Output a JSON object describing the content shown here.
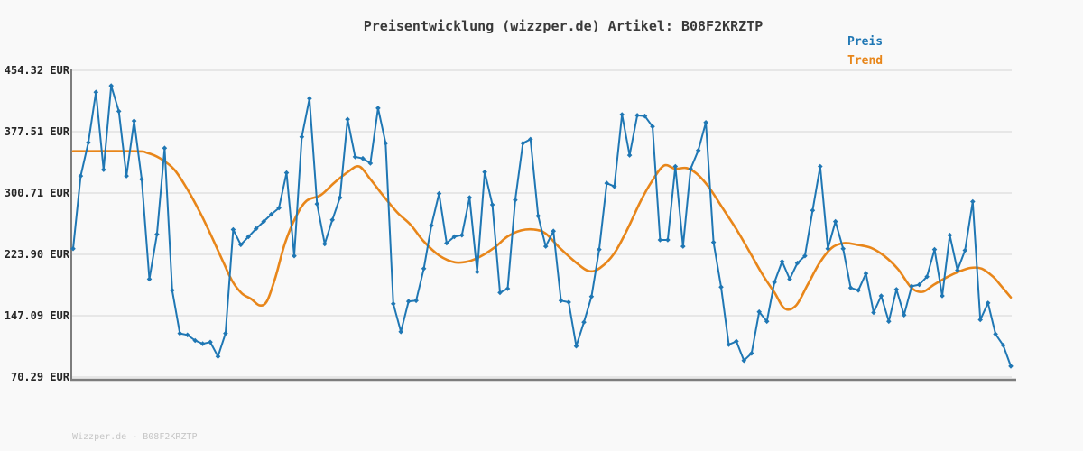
{
  "title": "Preisentwicklung (wizzper.de) Artikel: B08F2KRZTP",
  "footer": "Wizzper.de - B08F2KRZTP",
  "legend": [
    {
      "label": "Preis",
      "color": "#1f77b4"
    },
    {
      "label": "Trend",
      "color": "#e8861a"
    }
  ],
  "axis": {
    "currency": "EUR",
    "y_ticks": [
      454.32,
      377.51,
      300.71,
      223.9,
      147.09,
      70.29
    ],
    "y_tick_labels": [
      "454.32 EUR",
      "377.51 EUR",
      "300.71 EUR",
      "223.90 EUR",
      "147.09 EUR",
      "70.29 EUR"
    ],
    "x_tick_labels_visible": false
  },
  "theme": {
    "background": "#f9f9f9",
    "gridline": "#e4e4e4",
    "spine": "#7d7d7d",
    "title_color": "#3a3a3a",
    "tick_color": "#262626",
    "watermark_color": "#c6c6c6"
  },
  "chart_data": {
    "type": "line",
    "title": "Preisentwicklung (wizzper.de) Artikel: B08F2KRZTP",
    "xlabel": "",
    "ylabel": "EUR",
    "ylim": [
      70.29,
      454.32
    ],
    "grid": "horizontal",
    "legend_position": "top-right",
    "series": [
      {
        "name": "Preis",
        "color": "#1f77b4",
        "marker": "diamond",
        "values": [
          231,
          322,
          364,
          427,
          330,
          435,
          403,
          322,
          391,
          318,
          193,
          249,
          357,
          179,
          125,
          123,
          116,
          112,
          114,
          96,
          125,
          255,
          236,
          246,
          256,
          265,
          274,
          282,
          326,
          222,
          371,
          419,
          287,
          237,
          267,
          295,
          393,
          346,
          344,
          338,
          407,
          363,
          162,
          127,
          165,
          166,
          206,
          260,
          300,
          238,
          246,
          248,
          295,
          202,
          327,
          286,
          176,
          181,
          292,
          363,
          368,
          272,
          234,
          253,
          166,
          164,
          109,
          139,
          171,
          230,
          313,
          309,
          399,
          348,
          398,
          397,
          384,
          242,
          242,
          334,
          234,
          331,
          354,
          389,
          239,
          183,
          111,
          115,
          91,
          100,
          152,
          140,
          189,
          215,
          193,
          213,
          222,
          279,
          334,
          231,
          265,
          231,
          182,
          179,
          200,
          151,
          172,
          140,
          180,
          148,
          184,
          186,
          196,
          230,
          172,
          248,
          204,
          229,
          290,
          142,
          163,
          124,
          110,
          84
        ]
      },
      {
        "name": "Trend",
        "color": "#e8861a",
        "marker": "none",
        "anchors_x_fraction_value": [
          [
            0.0,
            353
          ],
          [
            0.066,
            353
          ],
          [
            0.079,
            351
          ],
          [
            0.093,
            344
          ],
          [
            0.108,
            330
          ],
          [
            0.122,
            305
          ],
          [
            0.136,
            275
          ],
          [
            0.149,
            243
          ],
          [
            0.161,
            212
          ],
          [
            0.17,
            190
          ],
          [
            0.18,
            175
          ],
          [
            0.19,
            168
          ],
          [
            0.199,
            160
          ],
          [
            0.207,
            166
          ],
          [
            0.216,
            196
          ],
          [
            0.226,
            238
          ],
          [
            0.238,
            272
          ],
          [
            0.249,
            291
          ],
          [
            0.264,
            298
          ],
          [
            0.278,
            313
          ],
          [
            0.293,
            327
          ],
          [
            0.305,
            334
          ],
          [
            0.317,
            318
          ],
          [
            0.331,
            297
          ],
          [
            0.346,
            276
          ],
          [
            0.36,
            261
          ],
          [
            0.374,
            240
          ],
          [
            0.391,
            222
          ],
          [
            0.407,
            214
          ],
          [
            0.421,
            215
          ],
          [
            0.434,
            221
          ],
          [
            0.45,
            233
          ],
          [
            0.463,
            246
          ],
          [
            0.478,
            254
          ],
          [
            0.492,
            255
          ],
          [
            0.504,
            250
          ],
          [
            0.519,
            232
          ],
          [
            0.536,
            214
          ],
          [
            0.55,
            203
          ],
          [
            0.562,
            207
          ],
          [
            0.577,
            225
          ],
          [
            0.591,
            255
          ],
          [
            0.605,
            290
          ],
          [
            0.617,
            315
          ],
          [
            0.63,
            335
          ],
          [
            0.642,
            331
          ],
          [
            0.654,
            332
          ],
          [
            0.665,
            325
          ],
          [
            0.678,
            308
          ],
          [
            0.692,
            283
          ],
          [
            0.707,
            256
          ],
          [
            0.721,
            228
          ],
          [
            0.735,
            199
          ],
          [
            0.748,
            176
          ],
          [
            0.759,
            156
          ],
          [
            0.771,
            160
          ],
          [
            0.783,
            185
          ],
          [
            0.796,
            213
          ],
          [
            0.809,
            232
          ],
          [
            0.822,
            238
          ],
          [
            0.836,
            236
          ],
          [
            0.851,
            232
          ],
          [
            0.865,
            222
          ],
          [
            0.88,
            205
          ],
          [
            0.894,
            182
          ],
          [
            0.906,
            177
          ],
          [
            0.918,
            186
          ],
          [
            0.933,
            196
          ],
          [
            0.944,
            202
          ],
          [
            0.957,
            207
          ],
          [
            0.969,
            206
          ],
          [
            0.981,
            196
          ],
          [
            0.99,
            184
          ],
          [
            1.0,
            170
          ]
        ]
      }
    ]
  }
}
